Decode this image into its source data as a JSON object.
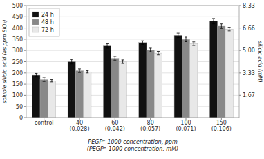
{
  "chart_data": {
    "type": "bar",
    "categories": [
      "control",
      "40\n(0.028)",
      "60\n(0.042)",
      "80\n(0.057)",
      "100\n(0.071)",
      "150\n(0.106)"
    ],
    "series": [
      {
        "name": "24 h",
        "color": "#111111",
        "values": [
          190,
          250,
          320,
          335,
          367,
          430
        ],
        "errors": [
          8,
          10,
          10,
          8,
          10,
          12
        ]
      },
      {
        "name": "48 h",
        "color": "#888888",
        "values": [
          170,
          210,
          265,
          302,
          349,
          408
        ],
        "errors": [
          8,
          8,
          8,
          8,
          10,
          10
        ]
      },
      {
        "name": "72 h",
        "color": "#e8e8e8",
        "values": [
          165,
          205,
          250,
          288,
          330,
          395
        ],
        "errors": [
          5,
          5,
          8,
          8,
          8,
          8
        ]
      }
    ],
    "x_label": "PEGP⁺-1000 concentration, ppm\n(PEGP⁺-1000 concentration, mM)",
    "y_label": "soluble silicic acid (as ppm SiO₂)",
    "y2_label": "silicic acid (mM)",
    "ylim": [
      0,
      500
    ],
    "yticks": [
      0,
      50,
      100,
      150,
      200,
      250,
      300,
      350,
      400,
      450,
      500
    ],
    "y2lim": [
      0,
      8.33
    ],
    "y2ticks": [
      1.67,
      3.33,
      {
        "value": 5.0,
        "label": "5.00"
      },
      6.66,
      8.33
    ],
    "grid": true,
    "legend": "upper left"
  }
}
